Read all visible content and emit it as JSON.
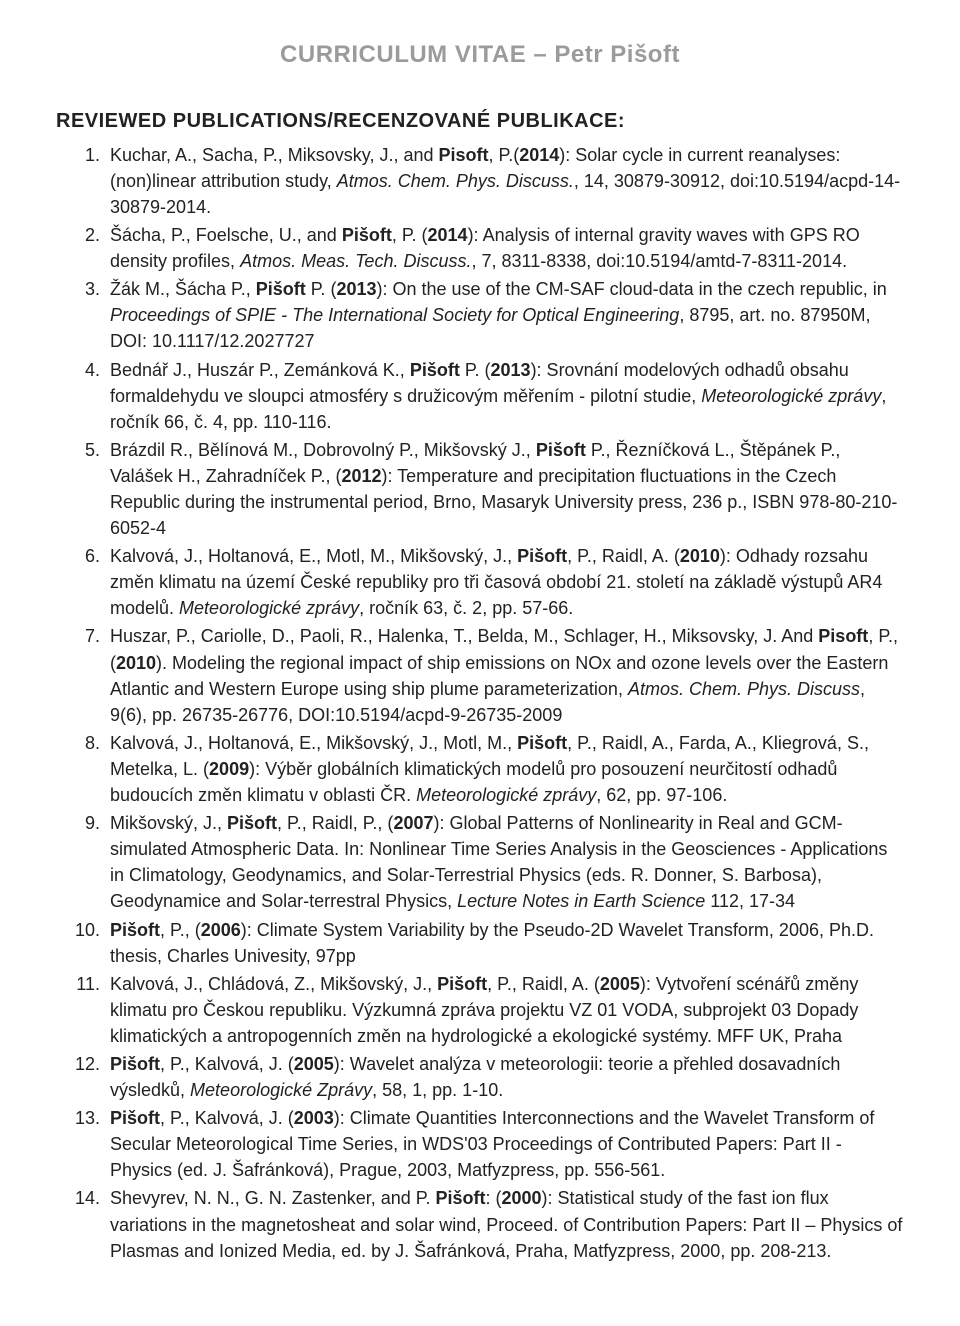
{
  "page_title": "CURRICULUM VITAE – Petr Pišoft",
  "section_heading": "REVIEWED PUBLICATIONS/RECENZOVANÉ PUBLIKACE:",
  "entries": [
    {
      "num": "1",
      "parts": [
        {
          "t": "Kuchar, A., Sacha, P., Miksovsky, J., and "
        },
        {
          "t": "Pisoft",
          "b": true
        },
        {
          "t": ", P.("
        },
        {
          "t": "2014",
          "b": true
        },
        {
          "t": "): Solar cycle in current reanalyses: (non)linear attribution study, "
        },
        {
          "t": "Atmos. Chem. Phys. Discuss.",
          "i": true
        },
        {
          "t": ", 14, 30879-30912, doi:10.5194/acpd-14-30879-2014."
        }
      ]
    },
    {
      "num": "2",
      "parts": [
        {
          "t": "Šácha, P., Foelsche, U., and "
        },
        {
          "t": "Pišoft",
          "b": true
        },
        {
          "t": ", P. ("
        },
        {
          "t": "2014",
          "b": true
        },
        {
          "t": "): Analysis of internal gravity waves with GPS RO density profiles, "
        },
        {
          "t": "Atmos. Meas. Tech. Discuss.",
          "i": true
        },
        {
          "t": ", 7, 8311-8338, doi:10.5194/amtd-7-8311-2014."
        }
      ]
    },
    {
      "num": "3",
      "parts": [
        {
          "t": "Žák M., Šácha P., "
        },
        {
          "t": "Pišoft",
          "b": true
        },
        {
          "t": " P. ("
        },
        {
          "t": "2013",
          "b": true
        },
        {
          "t": "): On the use of the CM-SAF cloud-data in the czech republic, in "
        },
        {
          "t": "Proceedings of SPIE - The International Society for Optical Engineering",
          "i": true
        },
        {
          "t": ", 8795, art. no. 87950M, DOI: 10.1117/12.2027727"
        }
      ]
    },
    {
      "num": "4",
      "parts": [
        {
          "t": "Bednář J., Huszár P., Zemánková K., "
        },
        {
          "t": "Pišoft",
          "b": true
        },
        {
          "t": " P. ("
        },
        {
          "t": "2013",
          "b": true
        },
        {
          "t": "): Srovnání modelových odhadů obsahu formaldehydu ve sloupci atmosféry s družicovým měřením - pilotní studie, "
        },
        {
          "t": "Meteorologické zprávy",
          "i": true
        },
        {
          "t": ", ročník 66, č. 4, pp. 110-116."
        }
      ]
    },
    {
      "num": "5",
      "parts": [
        {
          "t": "Brázdil R., Bělínová M., Dobrovolný P., Mikšovský J., "
        },
        {
          "t": "Pišoft",
          "b": true
        },
        {
          "t": " P., Řezníčková L., Štěpánek P., Valášek H., Zahradníček P., ("
        },
        {
          "t": "2012",
          "b": true
        },
        {
          "t": "): Temperature and precipitation fluctuations in the Czech Republic during the instrumental period, Brno, Masaryk University press, 236 p., ISBN 978-80-210-6052-4"
        }
      ]
    },
    {
      "num": "6",
      "parts": [
        {
          "t": "Kalvová, J., Holtanová, E., Motl, M., Mikšovský, J., "
        },
        {
          "t": "Pišoft",
          "b": true
        },
        {
          "t": ", P., Raidl, A. ("
        },
        {
          "t": "2010",
          "b": true
        },
        {
          "t": "): Odhady rozsahu změn klimatu na území České republiky pro tři časová období 21. století na základě výstupů AR4 modelů. "
        },
        {
          "t": "Meteorologické zprávy",
          "i": true
        },
        {
          "t": ", ročník 63, č. 2, pp. 57-66."
        }
      ]
    },
    {
      "num": "7",
      "parts": [
        {
          "t": "Huszar, P., Cariolle, D., Paoli, R., Halenka, T., Belda, M., Schlager, H., Miksovsky, J. And "
        },
        {
          "t": "Pisoft",
          "b": true
        },
        {
          "t": ", P., ("
        },
        {
          "t": "2010",
          "b": true
        },
        {
          "t": "). Modeling the regional impact of ship emissions on NOx and ozone levels over the Eastern Atlantic and Western Europe using ship plume parameterization, "
        },
        {
          "t": "Atmos. Chem. Phys. Discuss",
          "i": true
        },
        {
          "t": ", 9(6), pp. 26735-26776, DOI:10.5194/acpd-9-26735-2009"
        }
      ]
    },
    {
      "num": "8",
      "parts": [
        {
          "t": "Kalvová, J., Holtanová, E., Mikšovský, J., Motl, M., "
        },
        {
          "t": "Pišoft",
          "b": true
        },
        {
          "t": ", P., Raidl, A., Farda, A., Kliegrová, S., Metelka, L. ("
        },
        {
          "t": "2009",
          "b": true
        },
        {
          "t": "): Výběr globálních klimatických modelů pro posouzení neurčitostí odhadů budoucích změn klimatu v oblasti ČR. "
        },
        {
          "t": "Meteorologické zprávy",
          "i": true
        },
        {
          "t": ", 62, pp. 97-106."
        }
      ]
    },
    {
      "num": "9",
      "parts": [
        {
          "t": "Mikšovský, J., "
        },
        {
          "t": "Pišoft",
          "b": true
        },
        {
          "t": ", P., Raidl, P., ("
        },
        {
          "t": "2007",
          "b": true
        },
        {
          "t": "): Global Patterns of Nonlinearity in Real and GCM-simulated Atmospheric Data. In: Nonlinear Time Series Analysis in the Geosciences - Applications in Climatology, Geodynamics, and Solar-Terrestrial Physics (eds. R. Donner, S. Barbosa), Geodynamice and Solar-terrestral Physics, "
        },
        {
          "t": "Lecture Notes in Earth Science",
          "i": true
        },
        {
          "t": " 112, 17-34"
        }
      ]
    },
    {
      "num": "10",
      "parts": [
        {
          "t": "Pišoft",
          "b": true
        },
        {
          "t": ", P., ("
        },
        {
          "t": "2006",
          "b": true
        },
        {
          "t": "): Climate System Variability by the Pseudo-2D Wavelet Transform, 2006, Ph.D. thesis, Charles Univesity, 97pp"
        }
      ]
    },
    {
      "num": "11",
      "parts": [
        {
          "t": "Kalvová, J., Chládová, Z., Mikšovský, J., "
        },
        {
          "t": "Pišoft",
          "b": true
        },
        {
          "t": ", P., Raidl, A. ("
        },
        {
          "t": "2005",
          "b": true
        },
        {
          "t": "): Vytvoření scénářů změny klimatu pro Českou republiku. Výzkumná zpráva projektu VZ 01 VODA, subprojekt 03 Dopady klimatických a antropogenních změn na hydrologické a ekologické systémy. MFF UK, Praha"
        }
      ]
    },
    {
      "num": "12",
      "parts": [
        {
          "t": "Pišoft",
          "b": true
        },
        {
          "t": ", P., Kalvová, J. ("
        },
        {
          "t": "2005",
          "b": true
        },
        {
          "t": "): Wavelet analýza v meteorologii: teorie a přehled dosavadních výsledků, "
        },
        {
          "t": "Meteorologické Zprávy",
          "i": true
        },
        {
          "t": ", 58, 1, pp. 1-10."
        }
      ]
    },
    {
      "num": "13",
      "parts": [
        {
          "t": "Pišoft",
          "b": true
        },
        {
          "t": ", P., Kalvová, J. ("
        },
        {
          "t": "2003",
          "b": true
        },
        {
          "t": "): Climate Quantities Interconnections and the Wavelet Transform of Secular Meteorological Time Series, in WDS'03 Proceedings of Contributed Papers: Part II - Physics (ed. J. Šafránková), Prague, 2003, Matfyzpress, pp. 556-561."
        }
      ]
    },
    {
      "num": "14",
      "parts": [
        {
          "t": "Shevyrev, N. N., G. N. Zastenker, and P. "
        },
        {
          "t": "Pišoft",
          "b": true
        },
        {
          "t": ": ("
        },
        {
          "t": "2000",
          "b": true
        },
        {
          "t": "): Statistical study of the fast ion flux variations in the magnetosheat and solar wind, Proceed. of Contribution Papers: Part II – Physics of Plasmas and Ionized Media, ed. by J. Šafránková, Praha, Matfyzpress, 2000, pp. 208-213."
        }
      ]
    }
  ]
}
